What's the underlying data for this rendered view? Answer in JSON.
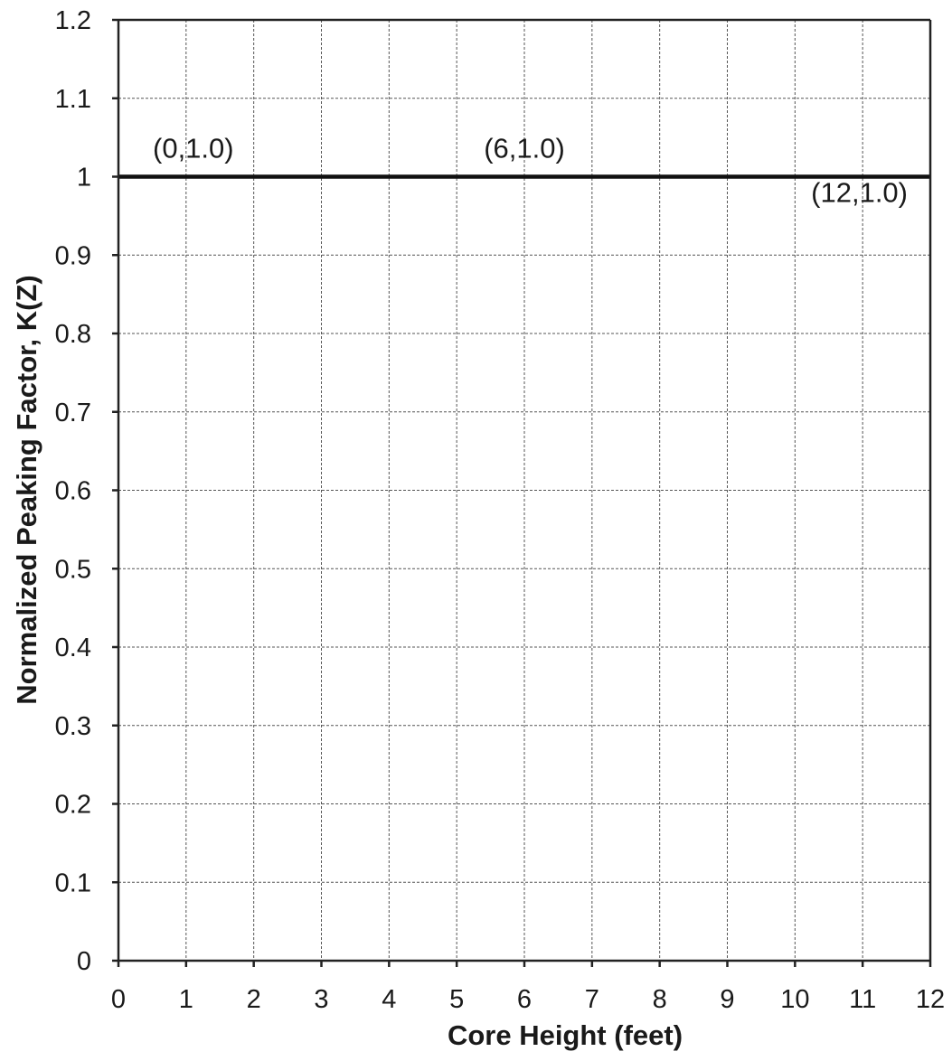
{
  "chart_data": {
    "type": "line",
    "title": "",
    "xlabel": "Core Height (feet)",
    "ylabel": "Normalized Peaking Factor, K(Z)",
    "xlim": [
      0,
      12
    ],
    "ylim": [
      0,
      1.2
    ],
    "x_ticks": [
      "0",
      "1",
      "2",
      "3",
      "4",
      "5",
      "6",
      "7",
      "8",
      "9",
      "10",
      "11",
      "12"
    ],
    "y_ticks": [
      "0",
      "0.1",
      "0.2",
      "0.3",
      "0.4",
      "0.5",
      "0.6",
      "0.7",
      "0.8",
      "0.9",
      "1",
      "1.1",
      "1.2"
    ],
    "grid": true,
    "series": [
      {
        "x": [
          0,
          6,
          12
        ],
        "y": [
          1.0,
          1.0,
          1.0
        ],
        "color": "#111111"
      }
    ],
    "annotations": [
      {
        "text": "(0,1.0)",
        "x": 0,
        "y": 1.0,
        "placement": "above"
      },
      {
        "text": "(6,1.0)",
        "x": 6,
        "y": 1.0,
        "placement": "above"
      },
      {
        "text": "(12,1.0)",
        "x": 12,
        "y": 1.0,
        "placement": "below"
      }
    ]
  }
}
